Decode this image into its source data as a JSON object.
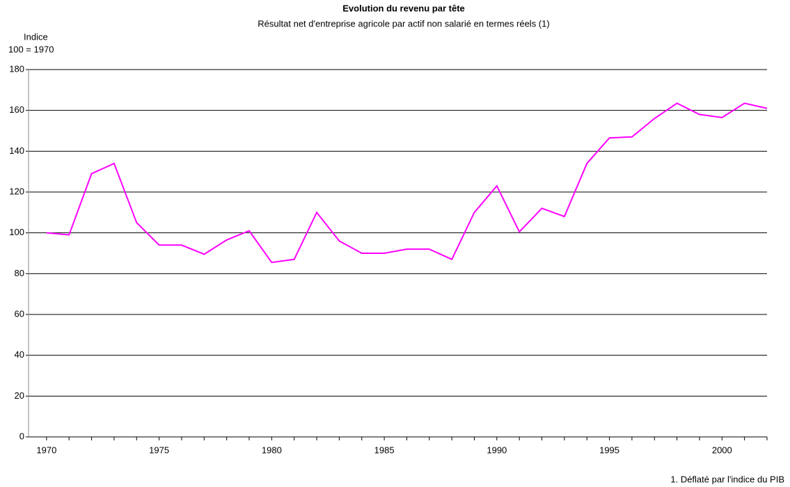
{
  "chart_data": {
    "type": "line",
    "title": "Evolution du revenu par tête",
    "subtitle": "Résultat net d'entreprise agricole par actif non salarié en termes réels (1)",
    "y_label": [
      "Indice",
      "100 = 1970"
    ],
    "footnote": "1. Déflaté par l'indice du PIB",
    "x": [
      1970,
      1971,
      1972,
      1973,
      1974,
      1975,
      1976,
      1977,
      1978,
      1979,
      1980,
      1981,
      1982,
      1983,
      1984,
      1985,
      1986,
      1987,
      1988,
      1989,
      1990,
      1991,
      1992,
      1993,
      1994,
      1995,
      1996,
      1997,
      1998,
      1999,
      2000,
      2001,
      2002
    ],
    "series": [
      {
        "color": "#ff00ff",
        "values": [
          100,
          99,
          129,
          134,
          105,
          94,
          94,
          89.5,
          96.5,
          101,
          85.5,
          87,
          110,
          96,
          90,
          90,
          92,
          92,
          87,
          110,
          123,
          100.5,
          112,
          108,
          134,
          146.5,
          147,
          156,
          163.5,
          158,
          156.5,
          163.5,
          161
        ]
      }
    ],
    "xlim": [
      1969.2,
      2002
    ],
    "xticks": [
      1970,
      1975,
      1980,
      1985,
      1990,
      1995,
      2000
    ],
    "ylim": [
      0,
      180
    ],
    "yticks": [
      0,
      20,
      40,
      60,
      80,
      100,
      120,
      140,
      160,
      180
    ],
    "grid": true
  }
}
